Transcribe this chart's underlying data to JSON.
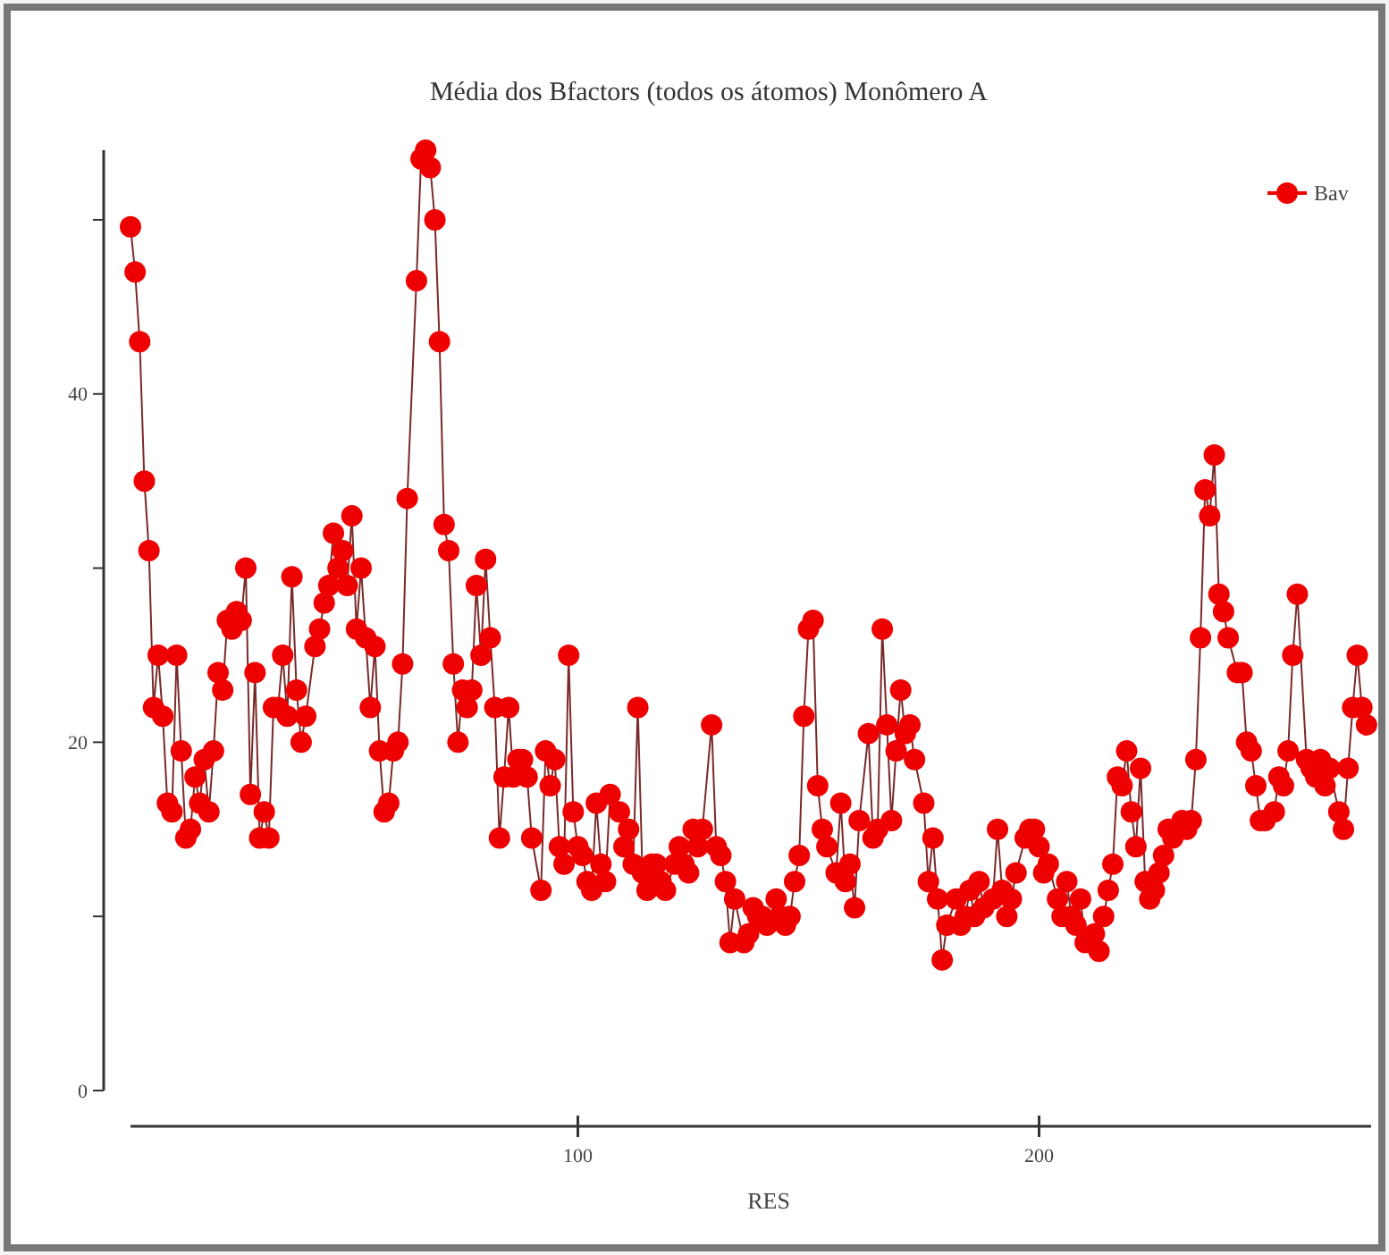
{
  "chart_data": {
    "type": "line",
    "title": "Média dos Bfactors (todos os átomos)   Monômero A",
    "xlabel": "RES",
    "x": [
      3,
      4,
      5,
      6,
      7,
      8,
      9,
      10,
      11,
      12,
      13,
      14,
      15,
      16,
      17,
      18,
      19,
      20,
      21,
      22,
      23,
      24,
      25,
      26,
      27,
      28,
      29,
      30,
      31,
      32,
      33,
      34,
      35,
      36,
      37,
      38,
      39,
      40,
      41,
      43,
      44,
      45,
      46,
      47,
      48,
      49,
      50,
      51,
      52,
      53,
      54,
      55,
      56,
      57,
      58,
      59,
      60,
      61,
      62,
      63,
      65,
      66,
      67,
      68,
      69,
      70,
      71,
      72,
      73,
      74,
      75,
      76,
      77,
      78,
      79,
      80,
      81,
      82,
      83,
      84,
      85,
      86,
      87,
      88,
      89,
      90,
      92,
      93,
      94,
      95,
      96,
      97,
      98,
      99,
      100,
      101,
      102,
      103,
      104,
      105,
      106,
      107,
      109,
      110,
      111,
      112,
      113,
      114,
      115,
      116,
      117,
      118,
      119,
      121,
      122,
      123,
      124,
      125,
      126,
      127,
      129,
      130,
      131,
      132,
      133,
      134,
      136,
      137,
      138,
      139,
      140,
      141,
      143,
      144,
      145,
      146,
      147,
      148,
      149,
      150,
      151,
      152,
      153,
      154,
      156,
      157,
      158,
      159,
      160,
      161,
      163,
      164,
      165,
      166,
      167,
      168,
      169,
      170,
      171,
      172,
      173,
      175,
      176,
      177,
      178,
      179,
      180,
      182,
      183,
      184,
      185,
      186,
      187,
      188,
      190,
      191,
      192,
      193,
      194,
      195,
      197,
      198,
      199,
      200,
      201,
      202,
      204,
      205,
      206,
      207,
      208,
      209,
      210,
      212,
      213,
      214,
      215,
      216,
      217,
      218,
      219,
      220,
      221,
      222,
      223,
      224,
      225,
      226,
      227,
      228,
      229,
      231,
      232,
      233,
      234,
      235,
      236,
      237,
      238,
      239,
      240,
      241,
      243,
      244,
      245,
      246,
      247,
      248,
      249,
      251,
      252,
      253,
      254,
      255,
      256,
      258,
      259,
      260,
      261,
      262,
      263,
      265,
      266,
      267,
      268,
      269,
      270,
      271
    ],
    "series": [
      {
        "name": "Bav",
        "color": "#ee0000",
        "values": [
          49.6,
          47,
          43,
          35,
          31,
          22,
          25,
          21.5,
          16.5,
          16,
          25,
          19.5,
          14.5,
          15,
          18,
          16.5,
          19,
          16,
          19.5,
          24,
          23,
          27,
          26.5,
          27.5,
          27,
          30,
          17,
          24,
          14.5,
          16,
          14.5,
          22,
          22,
          25,
          21.5,
          29.5,
          23,
          20,
          21.5,
          25.5,
          26.5,
          28,
          29,
          32,
          30,
          31,
          29,
          33,
          26.5,
          30,
          26,
          22,
          25.5,
          19.5,
          16,
          16.5,
          19.5,
          20,
          24.5,
          34,
          46.5,
          53.5,
          54,
          53,
          50,
          43,
          32.5,
          31,
          24.5,
          20,
          23,
          22,
          23,
          29,
          25,
          30.5,
          26,
          22,
          14.5,
          18,
          22,
          18,
          19,
          19,
          18,
          14.5,
          11.5,
          19.5,
          17.5,
          19,
          14,
          13,
          25,
          16,
          14,
          13.5,
          12,
          11.5,
          16.5,
          13,
          12,
          17,
          16,
          14,
          15,
          13,
          22,
          12.5,
          11.5,
          13,
          13,
          12,
          11.5,
          13,
          14,
          13,
          12.5,
          15,
          14,
          15,
          21,
          14,
          13.5,
          12,
          8.5,
          11,
          8.5,
          9,
          10.5,
          10,
          10,
          9.5,
          11,
          10,
          9.5,
          10,
          12,
          13.5,
          21.5,
          26.5,
          27,
          17.5,
          15,
          14,
          12.5,
          16.5,
          12,
          13,
          10.5,
          15.5,
          20.5,
          14.5,
          15,
          26.5,
          21,
          15.5,
          19.5,
          23,
          20.5,
          21,
          19,
          16.5,
          12,
          14.5,
          11,
          7.5,
          9.5,
          11,
          9.5,
          10,
          11.5,
          10,
          12,
          10.5,
          11,
          15,
          11.5,
          10,
          11,
          12.5,
          14.5,
          15,
          15,
          14,
          12.5,
          13,
          11,
          10,
          12,
          10,
          9.5,
          11,
          8.5,
          9,
          8,
          10,
          11.5,
          13,
          18,
          17.5,
          19.5,
          16,
          14,
          18.5,
          12,
          11,
          11.5,
          12.5,
          13.5,
          15,
          14.5,
          15.5,
          15,
          15.5,
          19,
          26,
          34.5,
          33,
          36.5,
          28.5,
          27.5,
          26,
          24,
          24,
          20,
          19.5,
          17.5,
          15.5,
          15.5,
          16,
          18,
          17.5,
          19.5,
          25,
          28.5,
          19,
          18.5,
          18,
          19,
          17.5,
          18.5,
          16,
          15,
          18.5,
          22,
          25,
          22,
          21
        ]
      }
    ],
    "xlim": [
      3,
      272
    ],
    "ylim": [
      0,
      54
    ],
    "xticks": [
      100,
      200
    ],
    "yticks": [
      0,
      {
        "value": 10,
        "label": null
      },
      20,
      {
        "value": 30,
        "label": null
      },
      40,
      {
        "value": 50,
        "label": null
      }
    ],
    "grid": false,
    "legend": "top right",
    "marker": "circle",
    "line_style": "solid"
  }
}
